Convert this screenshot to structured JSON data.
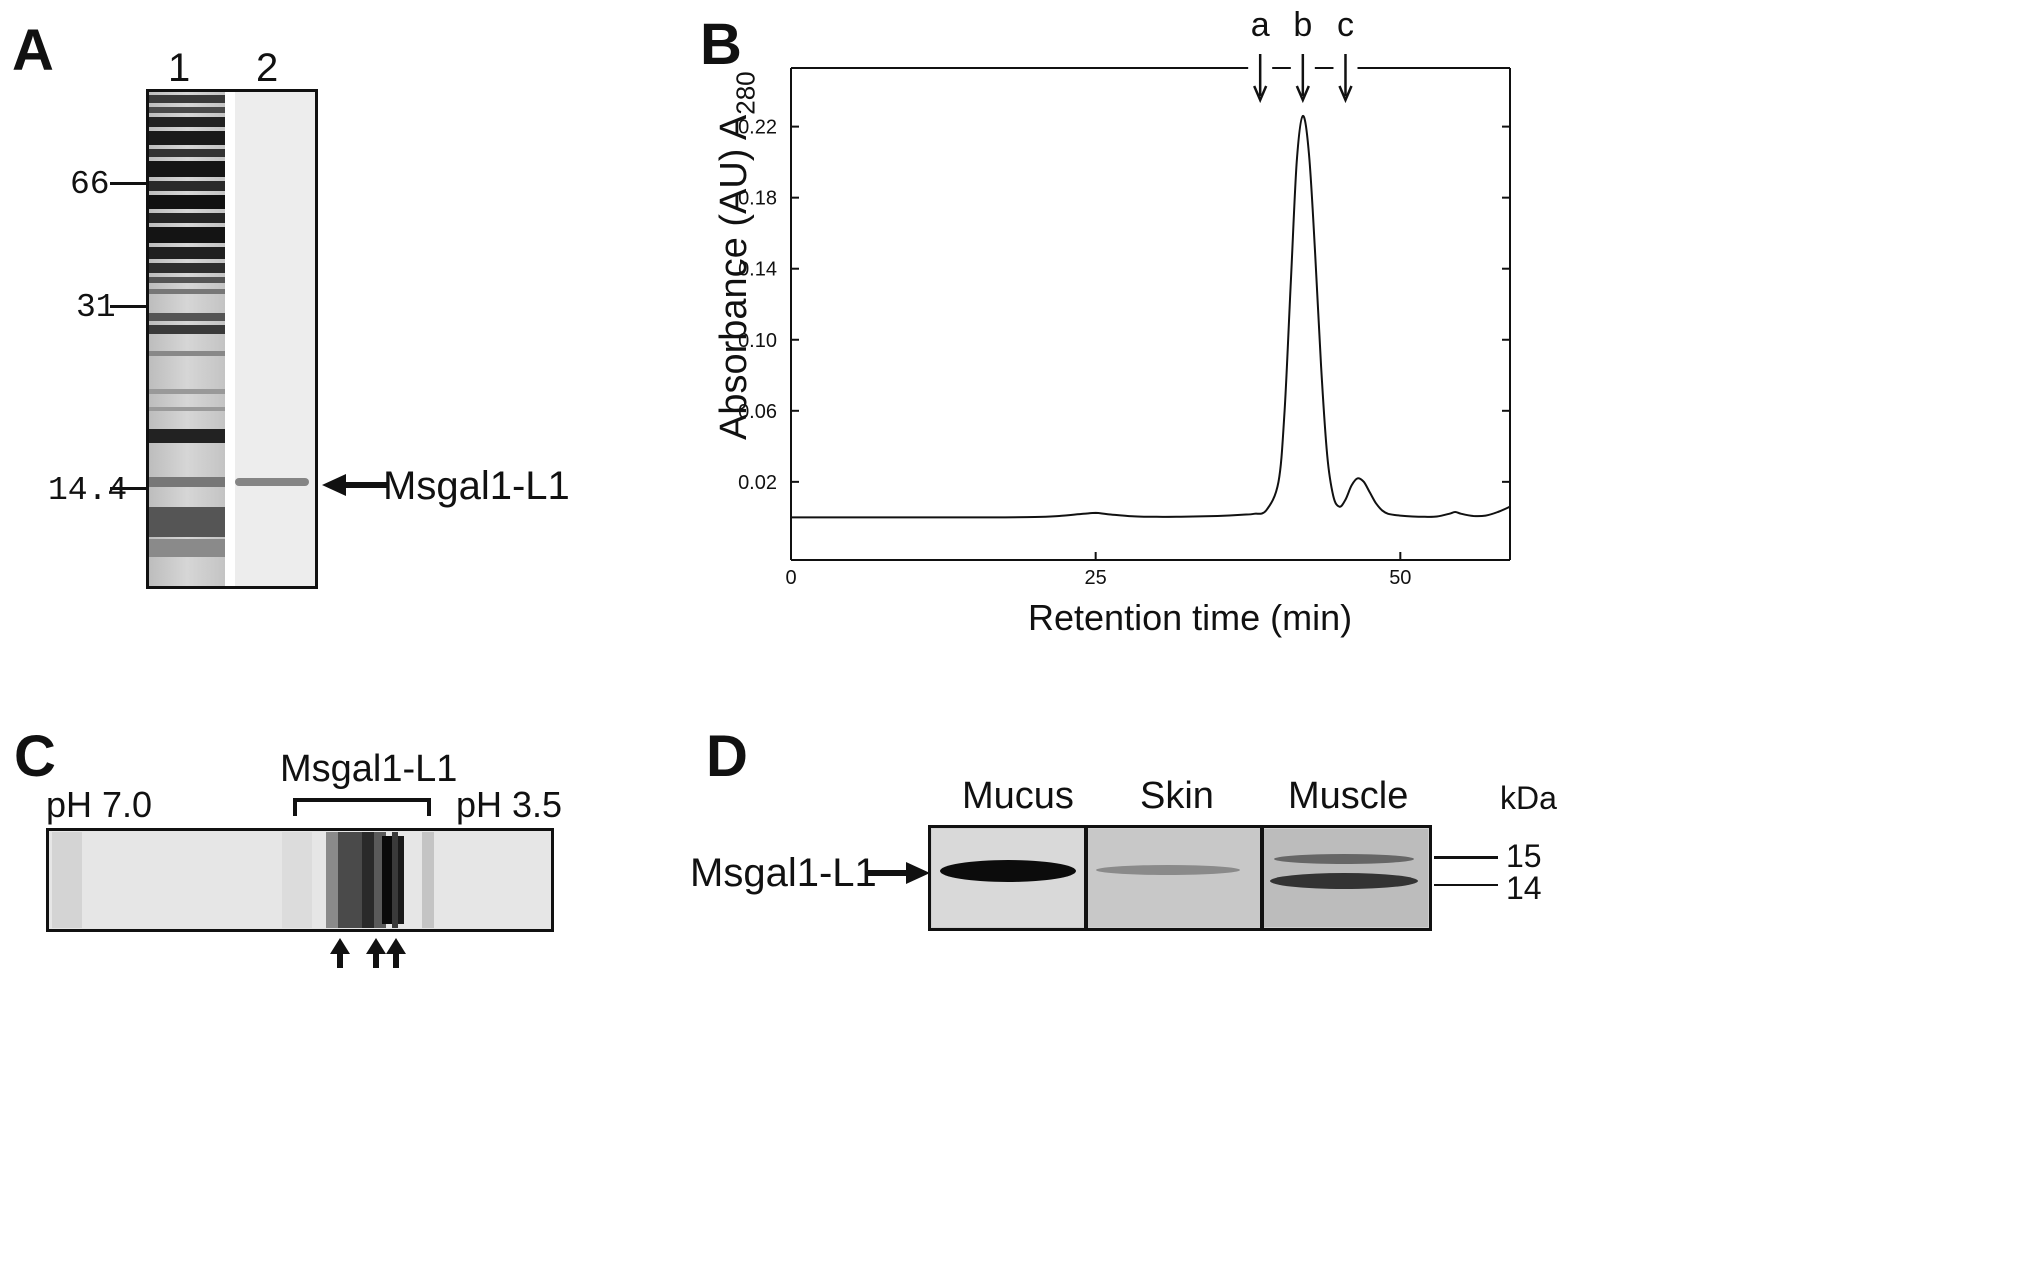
{
  "panel_a": {
    "letter": "A",
    "lanes": [
      "1",
      "2"
    ],
    "markers": [
      "66",
      "31",
      "14.4"
    ],
    "protein_label": "Msgal1-L1"
  },
  "panel_b": {
    "letter": "B",
    "peak_markers": [
      "a",
      "b",
      "c"
    ]
  },
  "chart_data": {
    "type": "line",
    "xlabel": "Retention time (min)",
    "ylabel": "Absorbance (AU) A",
    "ylabel_subscript": "280",
    "x_ticks": [
      "0",
      "25",
      "50"
    ],
    "y_ticks": [
      "0.02",
      "0.06",
      "0.10",
      "0.14",
      "0.18",
      "0.22"
    ],
    "xlim": [
      0,
      59
    ],
    "ylim": [
      -0.024,
      0.253
    ],
    "peak_markers": [
      {
        "label": "a",
        "x": 38.5
      },
      {
        "label": "b",
        "x": 42.0
      },
      {
        "label": "c",
        "x": 45.5
      }
    ],
    "series": [
      {
        "x": [
          0,
          5,
          10,
          15,
          20,
          22,
          24,
          25,
          26,
          28,
          30,
          32,
          35,
          37,
          38,
          39,
          40,
          40.5,
          41,
          41.5,
          42,
          42.5,
          43,
          43.5,
          44,
          44.5,
          45,
          45.5,
          46,
          46.5,
          47,
          47.5,
          48,
          48.5,
          49,
          50,
          51,
          52,
          53,
          54,
          54.5,
          55,
          56,
          57,
          58,
          59
        ],
        "y": [
          0.0,
          0.0,
          0.0,
          0.0,
          0.0002,
          0.0008,
          0.002,
          0.0025,
          0.0018,
          0.0006,
          0.0003,
          0.0004,
          0.0008,
          0.0015,
          0.002,
          0.004,
          0.02,
          0.06,
          0.13,
          0.2,
          0.226,
          0.205,
          0.15,
          0.085,
          0.035,
          0.012,
          0.006,
          0.01,
          0.018,
          0.022,
          0.02,
          0.014,
          0.008,
          0.004,
          0.002,
          0.001,
          0.0005,
          0.0003,
          0.0005,
          0.002,
          0.003,
          0.002,
          0.0008,
          0.001,
          0.003,
          0.006
        ]
      }
    ]
  },
  "panel_c": {
    "letter": "C",
    "bracket_label": "Msgal1-L1",
    "ph_left": "pH 7.0",
    "ph_right": "pH 3.5"
  },
  "panel_d": {
    "letter": "D",
    "columns": [
      "Mucus",
      "Skin",
      "Muscle"
    ],
    "unit": "kDa",
    "markers": [
      "15",
      "14"
    ],
    "protein_label": "Msgal1-L1"
  }
}
